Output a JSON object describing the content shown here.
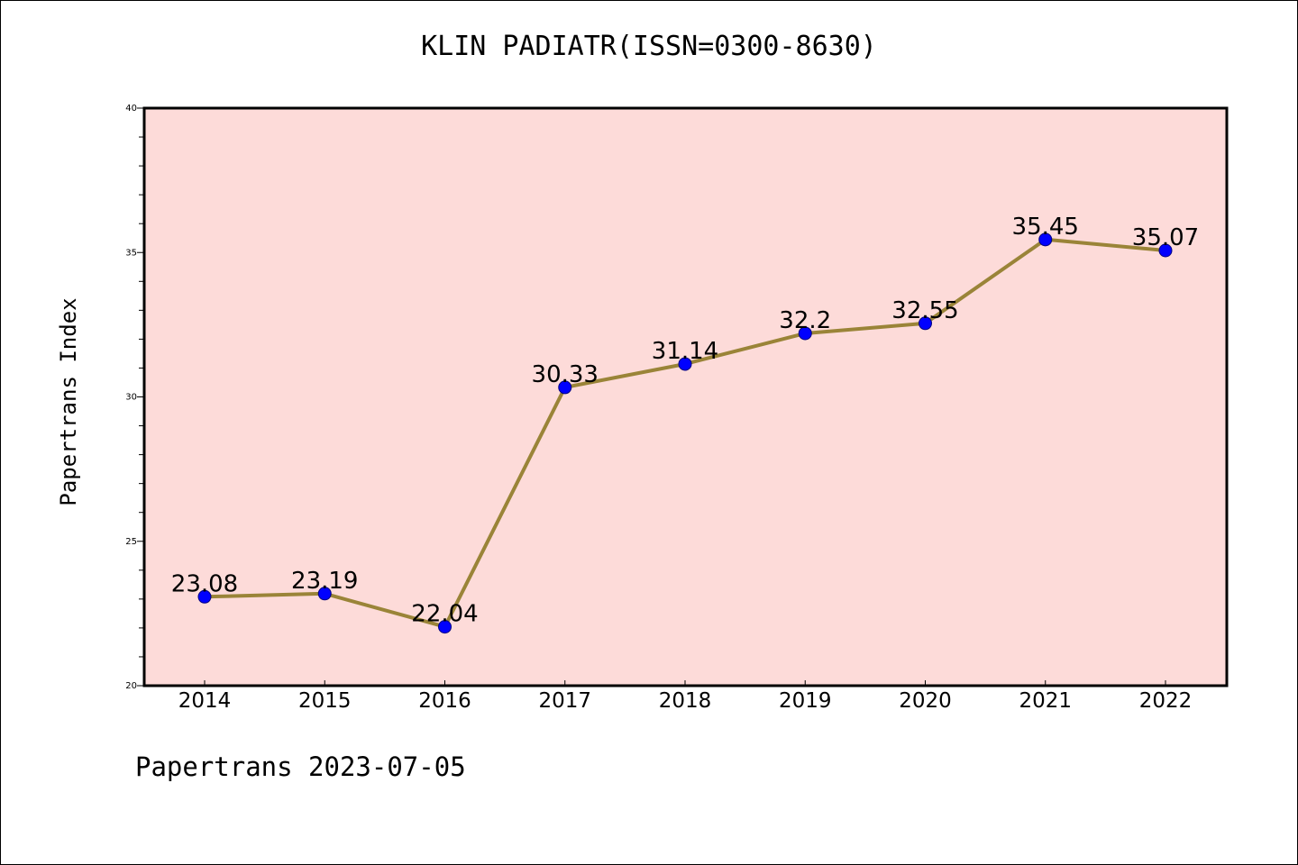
{
  "chart_data": {
    "type": "line",
    "title": "KLIN PADIATR(ISSN=0300-8630)",
    "xlabel": "",
    "ylabel": "Papertrans Index",
    "categories": [
      "2014",
      "2015",
      "2016",
      "2017",
      "2018",
      "2019",
      "2020",
      "2021",
      "2022"
    ],
    "values": [
      23.08,
      23.19,
      22.04,
      30.33,
      31.14,
      32.2,
      32.55,
      35.45,
      35.07
    ],
    "data_labels": [
      "23.08",
      "23.19",
      "22.04",
      "30.33",
      "31.14",
      "32.2",
      "32.55",
      "35.45",
      "35.07"
    ],
    "ylim": [
      20,
      40
    ],
    "yticks": [
      20,
      25,
      30,
      35,
      40
    ],
    "grid": false,
    "colors": {
      "plot_background": "#fddbd9",
      "line": "#9a8438",
      "marker": "#0000ff",
      "marker_edge": "#000080"
    }
  },
  "footer": "Papertrans 2023-07-05"
}
